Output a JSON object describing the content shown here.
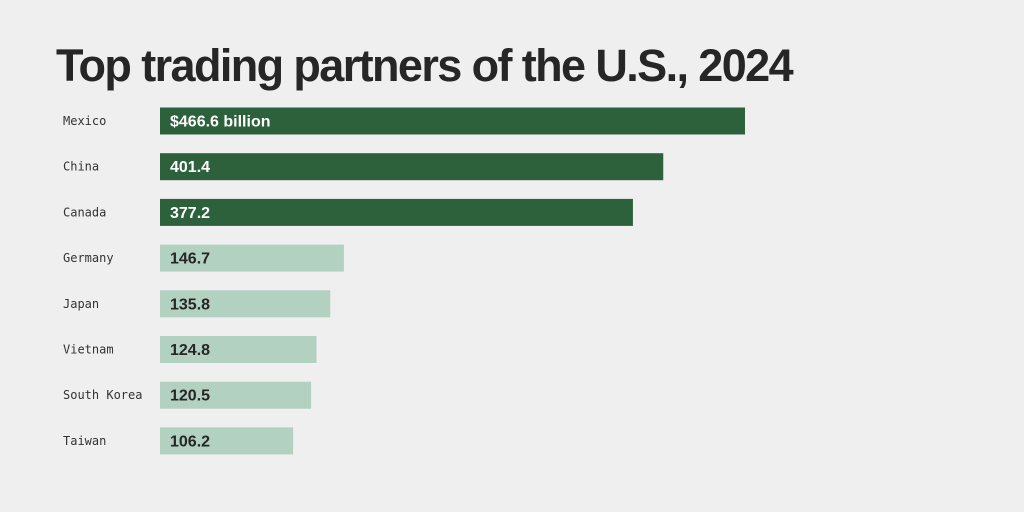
{
  "chart_data": {
    "type": "bar",
    "orientation": "horizontal",
    "title": "Top trading partners of the U.S., 2024",
    "categories": [
      "Mexico",
      "China",
      "Canada",
      "Germany",
      "Japan",
      "Vietnam",
      "South Korea",
      "Taiwan"
    ],
    "values": [
      466.6,
      401.4,
      377.2,
      146.7,
      135.8,
      124.8,
      120.5,
      106.2
    ],
    "value_labels": [
      "$466.6 billion",
      "401.4",
      "377.2",
      "146.7",
      "135.8",
      "124.8",
      "120.5",
      "106.2"
    ],
    "unit": "billion USD",
    "xlabel": "",
    "ylabel": "",
    "xlim": [
      0,
      466.6
    ],
    "grid": false,
    "legend": "none",
    "highlighted_count": 3,
    "colors": {
      "highlight_bar": "#2c613b",
      "highlight_text": "#ffffff",
      "regular_bar": "#b2d1c0",
      "regular_text": "#262626"
    }
  }
}
